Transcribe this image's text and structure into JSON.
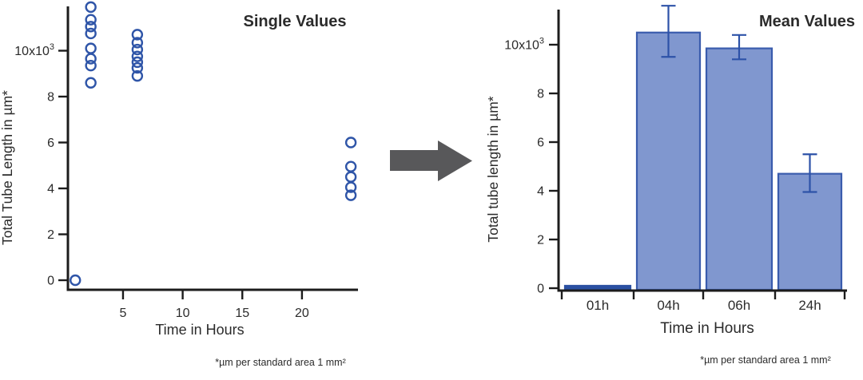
{
  "figure": {
    "background": "#ffffff",
    "arrow": {
      "color": "#58585a",
      "direction": "right"
    }
  },
  "chart_data": [
    {
      "id": "scatter",
      "type": "scatter",
      "title": "Single Values",
      "xlabel": "Time in Hours",
      "ylabel": "Total Tube Length in µm*",
      "footnote": "*µm per standard area 1 mm²",
      "x_ticks": [
        5,
        10,
        15,
        20
      ],
      "y_ticks": [
        {
          "value": 0,
          "label": "0"
        },
        {
          "value": 2000,
          "label": "2"
        },
        {
          "value": 4000,
          "label": "4"
        },
        {
          "value": 6000,
          "label": "6"
        },
        {
          "value": 8000,
          "label": "8"
        },
        {
          "value": 10000,
          "label": "10x10^3"
        }
      ],
      "xlim": [
        0,
        24.8
      ],
      "ylim": [
        0,
        12000
      ],
      "grid": false,
      "marker": {
        "shape": "open-circle",
        "radius": 6,
        "stroke": "#2f55a8",
        "stroke_width": 2.4,
        "fill": "none"
      },
      "groups": [
        {
          "label": "01h",
          "x_plot_hours": 1.0,
          "values": [
            0
          ]
        },
        {
          "label": "04h",
          "x_plot_hours": 2.3,
          "values": [
            11900,
            11350,
            11050,
            10750,
            10100,
            9650,
            9350,
            8600
          ]
        },
        {
          "label": "06h",
          "x_plot_hours": 6.2,
          "values": [
            10700,
            10350,
            10050,
            9750,
            9500,
            9250,
            8900
          ]
        },
        {
          "label": "24h",
          "x_plot_hours": 24.1,
          "values": [
            6000,
            4950,
            4500,
            4050,
            3700
          ]
        }
      ]
    },
    {
      "id": "bar",
      "type": "bar",
      "title": "Mean Values",
      "xlabel": "Time in Hours",
      "ylabel": "Total tube length in µm*",
      "footnote": "*µm per standard area 1 mm²",
      "categories": [
        "01h",
        "04h",
        "06h",
        "24h"
      ],
      "values": [
        100,
        10500,
        9850,
        4700
      ],
      "error_low": [
        null,
        9500,
        9400,
        3950
      ],
      "error_high": [
        null,
        11600,
        10400,
        5500
      ],
      "y_ticks": [
        {
          "value": 0,
          "label": "0"
        },
        {
          "value": 2000,
          "label": "2"
        },
        {
          "value": 4000,
          "label": "4"
        },
        {
          "value": 6000,
          "label": "6"
        },
        {
          "value": 8000,
          "label": "8"
        },
        {
          "value": 10000,
          "label": "10x10^3"
        }
      ],
      "ylim": [
        0,
        11800
      ],
      "grid": false,
      "colors": {
        "bar_fill": "#8097cf",
        "bar_stroke": "#3a5cad",
        "small_bar_fill": "#2b50a2",
        "error_color": "#2d52a8"
      }
    }
  ]
}
